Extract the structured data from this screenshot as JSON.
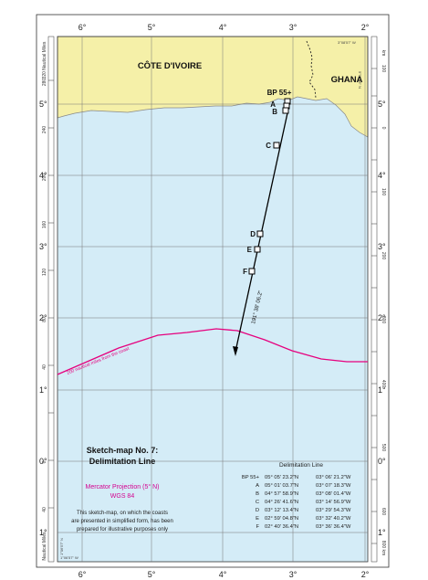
{
  "map": {
    "countries": {
      "left": "CÔTE D'IVOIRE",
      "right": "GHANA"
    },
    "top_longitudes": [
      "6°",
      "5°",
      "4°",
      "3°",
      "2°"
    ],
    "bottom_longitudes": [
      "6°",
      "5°",
      "4°",
      "3°",
      "2°"
    ],
    "left_latitudes": [
      "5°",
      "4°",
      "3°",
      "2°",
      "1°",
      "0°",
      "1°"
    ],
    "right_latitudes": [
      "5°",
      "4°",
      "3°",
      "2°",
      "1°",
      "0°",
      "1°"
    ],
    "left_nm_ticks": [
      "280",
      "240",
      "200",
      "160",
      "120",
      "80",
      "40",
      "0",
      "40"
    ],
    "right_km_ticks": [
      "100",
      "0",
      "100",
      "200",
      "300",
      "400",
      "500",
      "600"
    ],
    "left_scale_label": "320 Nautical Miles",
    "left_scale_label_bottom": "Nautical Miles",
    "right_scale_top": "km",
    "right_scale_bottom": "800 km",
    "corner_top_right": "3°08'57\" W",
    "corner_top_right2": "5°05'18\" N",
    "corner_bottom_left": "1°06'57\" N",
    "corner_bottom_left2": "1°06'57\" W",
    "points": [
      {
        "id": "BP 55+"
      },
      {
        "id": "A"
      },
      {
        "id": "B"
      },
      {
        "id": "C"
      },
      {
        "id": "D"
      },
      {
        "id": "E"
      },
      {
        "id": "F"
      }
    ],
    "azimuth_label": "191° 38' 06.2\"",
    "limit_label": "200 nautical miles from the coast"
  },
  "legend": {
    "title_line1": "Sketch-map No. 7:",
    "title_line2": "Delimitation Line",
    "projection": "Mercator Projection (5° N)",
    "datum": "WGS 84",
    "note": [
      "This sketch-map, on which the coasts",
      "are presented in simplified form, has been",
      "prepared for illustrative purposes only"
    ],
    "table_title": "Delimitation Line",
    "rows": [
      {
        "pt": "BP 55+",
        "lat": "05° 05' 23.2\"N",
        "lon": "03° 06' 21.2\"W"
      },
      {
        "pt": "A",
        "lat": "05° 01' 03.7\"N",
        "lon": "03° 07' 18.3\"W"
      },
      {
        "pt": "B",
        "lat": "04° 57' 58.9\"N",
        "lon": "03° 08' 01.4\"W"
      },
      {
        "pt": "C",
        "lat": "04° 26' 41.6\"N",
        "lon": "03° 14' 56.9\"W"
      },
      {
        "pt": "D",
        "lat": "03° 12' 13.4\"N",
        "lon": "03° 29' 54.3\"W"
      },
      {
        "pt": "E",
        "lat": "02° 59' 04.8\"N",
        "lon": "03° 32' 40.2\"W"
      },
      {
        "pt": "F",
        "lat": "02° 40' 36.4\"N",
        "lon": "03° 36' 36.4\"W"
      }
    ]
  },
  "colors": {
    "land": "#f5f0a8",
    "sea": "#d4ecf7",
    "limit_line": "#e6007e",
    "legend_magenta": "#d4008f",
    "frame": "#333333"
  }
}
